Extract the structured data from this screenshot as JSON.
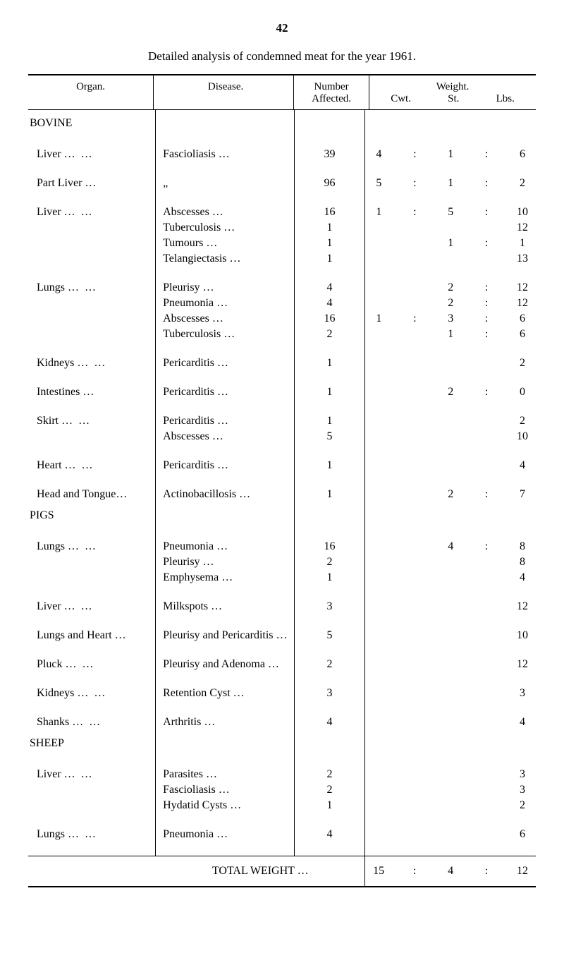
{
  "page_number": "42",
  "title": "Detailed analysis of condemned meat for the year 1961.",
  "headers": {
    "organ": "Organ.",
    "disease": "Disease.",
    "number": "Number Affected.",
    "weight": "Weight.",
    "cwt": "Cwt.",
    "st": "St.",
    "lbs": "Lbs."
  },
  "sections": {
    "bovine": "BOVINE",
    "pigs": "PIGS",
    "sheep": "SHEEP"
  },
  "bovine_rows": [
    {
      "organ": "Liver",
      "disease": "Fascioliasis",
      "number": "39",
      "cwt": "4",
      "st": "1",
      "lbs": "6"
    },
    {
      "organ": "Part Liver …",
      "disease": "„",
      "number": "96",
      "cwt": "5",
      "st": "1",
      "lbs": "2"
    },
    {
      "organ": "Liver",
      "disease": "Abscesses",
      "number": "16",
      "cwt": "1",
      "st": "5",
      "lbs": "10"
    },
    {
      "organ": "",
      "disease": "Tuberculosis",
      "number": "1",
      "cwt": "",
      "st": "",
      "lbs": "12"
    },
    {
      "organ": "",
      "disease": "Tumours",
      "number": "1",
      "cwt": "",
      "st": "1",
      "lbs": "1"
    },
    {
      "organ": "",
      "disease": "Telangiectasis",
      "number": "1",
      "cwt": "",
      "st": "",
      "lbs": "13"
    },
    {
      "organ": "Lungs",
      "disease": "Pleurisy",
      "number": "4",
      "cwt": "",
      "st": "2",
      "lbs": "12"
    },
    {
      "organ": "",
      "disease": "Pneumonia",
      "number": "4",
      "cwt": "",
      "st": "2",
      "lbs": "12"
    },
    {
      "organ": "",
      "disease": "Abscesses",
      "number": "16",
      "cwt": "1",
      "st": "3",
      "lbs": "6"
    },
    {
      "organ": "",
      "disease": "Tuberculosis",
      "number": "2",
      "cwt": "",
      "st": "1",
      "lbs": "6"
    },
    {
      "organ": "Kidneys",
      "disease": "Pericarditis",
      "number": "1",
      "cwt": "",
      "st": "",
      "lbs": "2"
    },
    {
      "organ": "Intestines …",
      "disease": "Pericarditis",
      "number": "1",
      "cwt": "",
      "st": "2",
      "lbs": "0"
    },
    {
      "organ": "Skirt",
      "disease": "Pericarditis",
      "number": "1",
      "cwt": "",
      "st": "",
      "lbs": "2"
    },
    {
      "organ": "",
      "disease": "Abscesses",
      "number": "5",
      "cwt": "",
      "st": "",
      "lbs": "10"
    },
    {
      "organ": "Heart",
      "disease": "Pericarditis",
      "number": "1",
      "cwt": "",
      "st": "",
      "lbs": "4"
    },
    {
      "organ": "Head and Tongue…",
      "disease": "Actinobacillosis",
      "number": "1",
      "cwt": "",
      "st": "2",
      "lbs": "7"
    }
  ],
  "pigs_rows": [
    {
      "organ": "Lungs",
      "disease": "Pneumonia",
      "number": "16",
      "cwt": "",
      "st": "4",
      "lbs": "8"
    },
    {
      "organ": "",
      "disease": "Pleurisy",
      "number": "2",
      "cwt": "",
      "st": "",
      "lbs": "8"
    },
    {
      "organ": "",
      "disease": "Emphysema",
      "number": "1",
      "cwt": "",
      "st": "",
      "lbs": "4"
    },
    {
      "organ": "Liver",
      "disease": "Milkspots …",
      "number": "3",
      "cwt": "",
      "st": "",
      "lbs": "12"
    },
    {
      "organ": "Lungs and Heart …",
      "disease": "Pleurisy and Pericarditis …",
      "number": "5",
      "cwt": "",
      "st": "",
      "lbs": "10"
    },
    {
      "organ": "Pluck",
      "disease": "Pleurisy and Adenoma",
      "number": "2",
      "cwt": "",
      "st": "",
      "lbs": "12"
    },
    {
      "organ": "Kidneys",
      "disease": "Retention Cyst",
      "number": "3",
      "cwt": "",
      "st": "",
      "lbs": "3"
    },
    {
      "organ": "Shanks",
      "disease": "Arthritis",
      "number": "4",
      "cwt": "",
      "st": "",
      "lbs": "4"
    }
  ],
  "sheep_rows": [
    {
      "organ": "Liver",
      "disease": "Parasites",
      "number": "2",
      "cwt": "",
      "st": "",
      "lbs": "3"
    },
    {
      "organ": "",
      "disease": "Fascioliasis",
      "number": "2",
      "cwt": "",
      "st": "",
      "lbs": "3"
    },
    {
      "organ": "",
      "disease": "Hydatid Cysts",
      "number": "1",
      "cwt": "",
      "st": "",
      "lbs": "2"
    },
    {
      "organ": "Lungs",
      "disease": "Pneumonia",
      "number": "4",
      "cwt": "",
      "st": "",
      "lbs": "6"
    }
  ],
  "total": {
    "label": "TOTAL WEIGHT …",
    "cwt": "15",
    "st": "4",
    "lbs": "12"
  },
  "dots": "…   …"
}
